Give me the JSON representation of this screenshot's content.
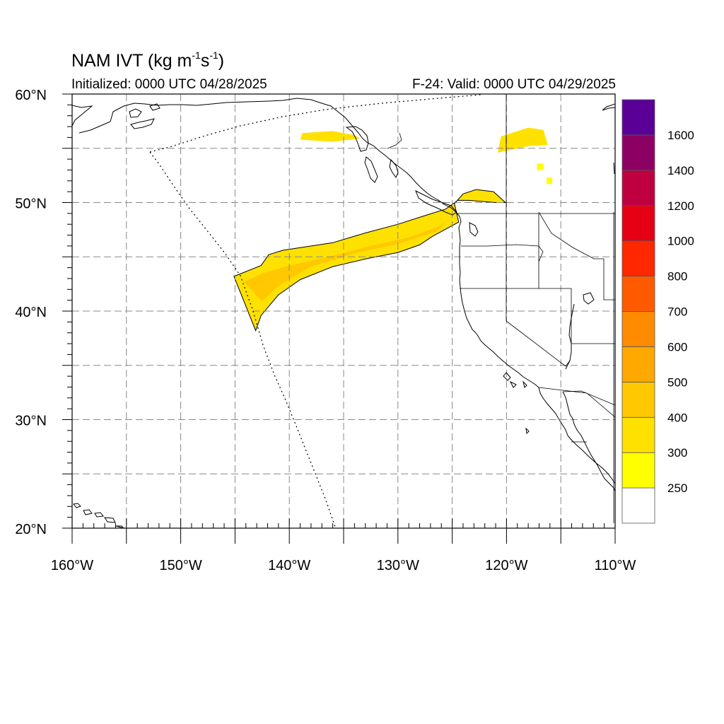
{
  "title": {
    "main": "NAM IVT (kg m",
    "exp1": "-1",
    "mid": "s",
    "exp2": "-1",
    "close": ")"
  },
  "subtitle_left": "Initialized: 0000 UTC 04/28/2025",
  "subtitle_right": "F-24: Valid: 0000 UTC 04/29/2025",
  "map": {
    "lon_range": [
      -160,
      -110
    ],
    "lat_range": [
      20,
      60
    ],
    "grid_lon": [
      -155,
      -150,
      -145,
      -140,
      -135,
      -130,
      -125,
      -120,
      -115
    ],
    "grid_lat": [
      25,
      30,
      35,
      40,
      45,
      50,
      55
    ],
    "lon_labels": [
      {
        "lon": -160,
        "text": "160°W"
      },
      {
        "lon": -150,
        "text": "150°W"
      },
      {
        "lon": -140,
        "text": "140°W"
      },
      {
        "lon": -130,
        "text": "130°W"
      },
      {
        "lon": -120,
        "text": "120°W"
      },
      {
        "lon": -110,
        "text": "110°W"
      }
    ],
    "lat_labels": [
      {
        "lat": 60,
        "text": "60°N"
      },
      {
        "lat": 50,
        "text": "50°N"
      },
      {
        "lat": 40,
        "text": "40°N"
      },
      {
        "lat": 30,
        "text": "30°N"
      },
      {
        "lat": 20,
        "text": "20°N"
      }
    ]
  },
  "colorbar": {
    "labels": [
      "250",
      "300",
      "400",
      "500",
      "600",
      "700",
      "800",
      "1000",
      "1200",
      "1400",
      "1600"
    ],
    "colors": [
      "#ffffff",
      "#ffff00",
      "#ffe100",
      "#ffc800",
      "#ffa800",
      "#ff8c00",
      "#ff5a00",
      "#ff2800",
      "#e60014",
      "#be0041",
      "#8c0064",
      "#5a0096"
    ]
  },
  "ivt_plume": {
    "outer_color": "#ffe100",
    "inner_color": "#ffc800",
    "outer": [
      [
        -145.1,
        43.2
      ],
      [
        -142.6,
        44.2
      ],
      [
        -141.9,
        45.2
      ],
      [
        -140.6,
        45.6
      ],
      [
        -136,
        46.3
      ],
      [
        -133,
        47.2
      ],
      [
        -130,
        48
      ],
      [
        -127.5,
        48.8
      ],
      [
        -125.6,
        49.4
      ],
      [
        -124.5,
        50.2
      ],
      [
        -123.5,
        50.2
      ],
      [
        -121,
        50
      ],
      [
        -120.1,
        50
      ],
      [
        -121.2,
        51
      ],
      [
        -122.8,
        51.2
      ],
      [
        -124,
        50.8
      ],
      [
        -124.8,
        49.9
      ],
      [
        -124.4,
        48.2
      ],
      [
        -126.8,
        46.9
      ],
      [
        -128,
        46.1
      ],
      [
        -130,
        45.4
      ],
      [
        -133,
        44.8
      ],
      [
        -136,
        44.1
      ],
      [
        -139,
        42.9
      ],
      [
        -141,
        41.5
      ],
      [
        -142.6,
        39.6
      ],
      [
        -143.1,
        38.2
      ],
      [
        -145.1,
        43.2
      ]
    ],
    "inner": [
      [
        -144.2,
        42.7
      ],
      [
        -142.4,
        43.5
      ],
      [
        -140,
        44.2
      ],
      [
        -136,
        45.1
      ],
      [
        -132.5,
        46
      ],
      [
        -129,
        46.8
      ],
      [
        -126.5,
        47.7
      ],
      [
        -125.5,
        48.2
      ],
      [
        -126.5,
        47.3
      ],
      [
        -130,
        46.2
      ],
      [
        -134,
        45.3
      ],
      [
        -138,
        44.1
      ],
      [
        -141,
        42.3
      ],
      [
        -142.5,
        40.9
      ],
      [
        -144.2,
        42.7
      ]
    ]
  },
  "small_patches": [
    {
      "color": "#ffe100",
      "points": [
        [
          -138.8,
          56.4
        ],
        [
          -136,
          56.6
        ],
        [
          -134,
          56.2
        ],
        [
          -133.5,
          55.9
        ],
        [
          -136,
          55.6
        ],
        [
          -139,
          55.8
        ],
        [
          -138.8,
          56.4
        ]
      ]
    },
    {
      "color": "#ffe100",
      "points": [
        [
          -120.5,
          56.1
        ],
        [
          -118,
          56.9
        ],
        [
          -116.6,
          56.7
        ],
        [
          -116.2,
          55.3
        ],
        [
          -118,
          55.2
        ],
        [
          -120.8,
          54.6
        ],
        [
          -120.5,
          56.1
        ]
      ]
    },
    {
      "color": "#ffff00",
      "points": [
        [
          -117.2,
          53.6
        ],
        [
          -116.6,
          53.6
        ],
        [
          -116.6,
          53
        ],
        [
          -117.2,
          53
        ],
        [
          -117.2,
          53.6
        ]
      ]
    },
    {
      "color": "#ffff00",
      "points": [
        [
          -116.3,
          52.3
        ],
        [
          -115.8,
          52.3
        ],
        [
          -115.8,
          51.7
        ],
        [
          -116.3,
          51.7
        ],
        [
          -116.3,
          52.3
        ]
      ]
    }
  ]
}
